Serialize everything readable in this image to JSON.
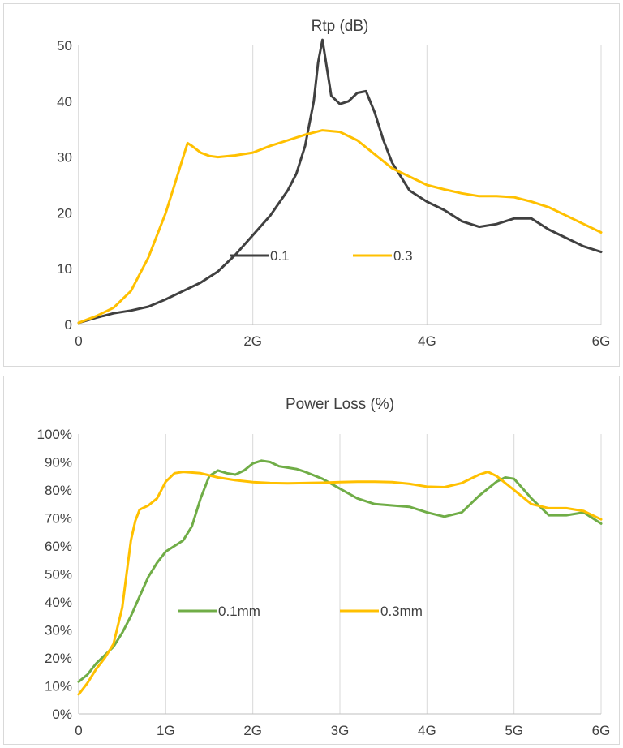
{
  "chart_data": [
    {
      "type": "line",
      "title": "Rtp (dB)",
      "xlabel": "",
      "ylabel": "",
      "xlim": [
        0,
        6
      ],
      "ylim": [
        0,
        50
      ],
      "x_ticks": [
        0,
        2,
        4,
        6
      ],
      "x_tick_labels": [
        "0",
        "2G",
        "4G",
        "6G"
      ],
      "y_ticks": [
        0,
        10,
        20,
        30,
        40,
        50
      ],
      "y_tick_labels": [
        "0",
        "10",
        "20",
        "30",
        "40",
        "50"
      ],
      "grid": "vertical",
      "legend_position": "inside-middle",
      "series": [
        {
          "name": "0.1",
          "color": "#404040",
          "x": [
            0,
            0.2,
            0.4,
            0.6,
            0.8,
            1.0,
            1.2,
            1.4,
            1.6,
            1.8,
            2.0,
            2.2,
            2.4,
            2.5,
            2.6,
            2.7,
            2.75,
            2.8,
            2.85,
            2.9,
            3.0,
            3.1,
            3.2,
            3.3,
            3.4,
            3.5,
            3.6,
            3.8,
            4.0,
            4.2,
            4.4,
            4.6,
            4.8,
            5.0,
            5.2,
            5.4,
            5.6,
            5.8,
            6.0
          ],
          "values": [
            0.3,
            1.2,
            2.0,
            2.5,
            3.2,
            4.5,
            6.0,
            7.5,
            9.5,
            12.5,
            16.0,
            19.5,
            24.0,
            27.0,
            32.0,
            40.0,
            47.0,
            51.0,
            46.0,
            41.0,
            39.5,
            40.0,
            41.5,
            41.8,
            38.0,
            33.0,
            29.0,
            24.0,
            22.0,
            20.5,
            18.5,
            17.5,
            18.0,
            19.0,
            19.0,
            17.0,
            15.5,
            14.0,
            13.0
          ]
        },
        {
          "name": "0.3",
          "color": "#ffc000",
          "x": [
            0,
            0.2,
            0.4,
            0.6,
            0.8,
            1.0,
            1.1,
            1.2,
            1.25,
            1.3,
            1.4,
            1.5,
            1.6,
            1.8,
            2.0,
            2.2,
            2.4,
            2.6,
            2.8,
            3.0,
            3.2,
            3.4,
            3.6,
            3.8,
            4.0,
            4.2,
            4.4,
            4.6,
            4.8,
            5.0,
            5.2,
            5.4,
            5.6,
            5.8,
            6.0
          ],
          "values": [
            0.3,
            1.5,
            3.0,
            6.0,
            12.0,
            20.0,
            25.0,
            30.0,
            32.5,
            32.0,
            30.8,
            30.2,
            30.0,
            30.3,
            30.8,
            32.0,
            33.0,
            34.0,
            34.8,
            34.5,
            33.0,
            30.5,
            28.0,
            26.5,
            25.0,
            24.2,
            23.5,
            23.0,
            23.0,
            22.8,
            22.0,
            21.0,
            19.5,
            18.0,
            16.5
          ]
        }
      ]
    },
    {
      "type": "line",
      "title": "Power Loss (%)",
      "xlabel": "",
      "ylabel": "",
      "xlim": [
        0,
        6
      ],
      "ylim": [
        0,
        100
      ],
      "x_ticks": [
        0,
        1,
        2,
        3,
        4,
        5,
        6
      ],
      "x_tick_labels": [
        "0",
        "1G",
        "2G",
        "3G",
        "4G",
        "5G",
        "6G"
      ],
      "y_ticks": [
        0,
        10,
        20,
        30,
        40,
        50,
        60,
        70,
        80,
        90,
        100
      ],
      "y_tick_labels": [
        "0%",
        "10%",
        "20%",
        "30%",
        "40%",
        "50%",
        "60%",
        "70%",
        "80%",
        "90%",
        "100%"
      ],
      "grid": "vertical",
      "legend_position": "inside-middle",
      "series": [
        {
          "name": "0.1mm",
          "color": "#70ad47",
          "x": [
            0,
            0.1,
            0.2,
            0.3,
            0.4,
            0.5,
            0.6,
            0.7,
            0.8,
            0.9,
            1.0,
            1.1,
            1.2,
            1.3,
            1.4,
            1.5,
            1.6,
            1.7,
            1.8,
            1.9,
            2.0,
            2.1,
            2.2,
            2.3,
            2.4,
            2.5,
            2.6,
            2.8,
            3.0,
            3.2,
            3.4,
            3.6,
            3.8,
            4.0,
            4.2,
            4.4,
            4.6,
            4.8,
            4.9,
            5.0,
            5.2,
            5.4,
            5.6,
            5.8,
            6.0
          ],
          "values": [
            11.5,
            14.0,
            18.0,
            21.0,
            24.0,
            29.0,
            35.0,
            42.0,
            49.0,
            54.0,
            58.0,
            60.0,
            62.0,
            67.0,
            77.0,
            85.0,
            87.0,
            86.0,
            85.5,
            87.0,
            89.5,
            90.5,
            90.0,
            88.5,
            88.0,
            87.5,
            86.5,
            84.0,
            80.5,
            77.0,
            75.0,
            74.5,
            74.0,
            72.0,
            70.5,
            72.0,
            78.0,
            83.0,
            84.5,
            84.0,
            77.0,
            71.0,
            71.0,
            72.0,
            68.0
          ]
        },
        {
          "name": "0.3mm",
          "color": "#ffc000",
          "x": [
            0,
            0.1,
            0.2,
            0.3,
            0.4,
            0.5,
            0.55,
            0.6,
            0.65,
            0.7,
            0.8,
            0.9,
            1.0,
            1.1,
            1.2,
            1.4,
            1.6,
            1.8,
            2.0,
            2.2,
            2.4,
            2.6,
            2.8,
            3.0,
            3.2,
            3.4,
            3.6,
            3.8,
            4.0,
            4.2,
            4.4,
            4.6,
            4.7,
            4.8,
            5.0,
            5.2,
            5.4,
            5.6,
            5.8,
            6.0
          ],
          "values": [
            7.0,
            11.0,
            16.0,
            20.0,
            25.0,
            38.0,
            50.0,
            62.0,
            69.0,
            73.0,
            74.5,
            77.0,
            83.0,
            86.0,
            86.5,
            86.0,
            84.5,
            83.5,
            82.8,
            82.5,
            82.4,
            82.5,
            82.6,
            82.8,
            83.0,
            83.0,
            82.8,
            82.2,
            81.2,
            81.0,
            82.5,
            85.5,
            86.5,
            85.0,
            80.0,
            75.0,
            73.5,
            73.5,
            72.5,
            69.5
          ]
        }
      ]
    }
  ]
}
